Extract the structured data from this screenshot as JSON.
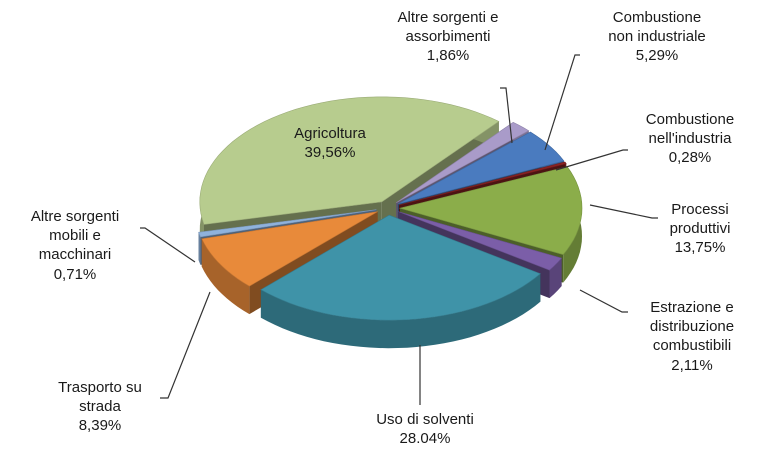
{
  "chart_data": {
    "type": "pie3d",
    "categories": [
      "Altre sorgenti e\nassorbimenti",
      "Combustione\nnon industriale",
      "Combustione\nnell'industria",
      "Processi\nproduttivi",
      "Estrazione e\ndistribuzione\ncombustibili",
      "Uso di solventi",
      "Trasporto su\nstrada",
      "Altre sorgenti\nmobili e\nmacchinari",
      "Agricoltura"
    ],
    "values": [
      1.86,
      5.29,
      0.28,
      13.75,
      2.11,
      28.04,
      8.39,
      0.71,
      39.56
    ],
    "value_labels": [
      "1,86%",
      "5,29%",
      "0,28%",
      "13,75%",
      "2,11%",
      "28.04%",
      "8,39%",
      "0,71%",
      "39,56%"
    ],
    "colors": [
      "#a99bc9",
      "#4a7bbf",
      "#8b2323",
      "#8bad4a",
      "#7b5ea8",
      "#3f93a8",
      "#e88a3a",
      "#8fb2dc",
      "#b7cc8e"
    ]
  }
}
